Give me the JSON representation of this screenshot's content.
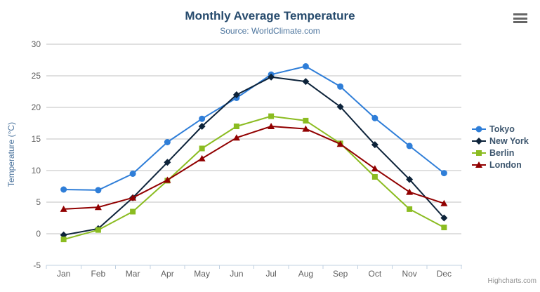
{
  "chart_data": {
    "type": "line",
    "title": "Monthly Average Temperature",
    "subtitle": "Source: WorldClimate.com",
    "categories": [
      "Jan",
      "Feb",
      "Mar",
      "Apr",
      "May",
      "Jun",
      "Jul",
      "Aug",
      "Sep",
      "Oct",
      "Nov",
      "Dec"
    ],
    "series": [
      {
        "name": "Tokyo",
        "color": "#2f7ed8",
        "marker": "circle",
        "values": [
          7.0,
          6.9,
          9.5,
          14.5,
          18.2,
          21.5,
          25.2,
          26.5,
          23.3,
          18.3,
          13.9,
          9.6
        ]
      },
      {
        "name": "New York",
        "color": "#0d233a",
        "marker": "diamond",
        "values": [
          -0.2,
          0.8,
          5.7,
          11.3,
          17.0,
          22.0,
          24.8,
          24.1,
          20.1,
          14.1,
          8.6,
          2.5
        ]
      },
      {
        "name": "Berlin",
        "color": "#8bbc21",
        "marker": "square",
        "values": [
          -0.9,
          0.6,
          3.5,
          8.4,
          13.5,
          17.0,
          18.6,
          17.9,
          14.3,
          9.0,
          3.9,
          1.0
        ]
      },
      {
        "name": "London",
        "color": "#910000",
        "marker": "triangle",
        "values": [
          3.9,
          4.2,
          5.7,
          8.5,
          11.9,
          15.2,
          17.0,
          16.6,
          14.2,
          10.3,
          6.6,
          4.8
        ]
      }
    ],
    "xlabel": "",
    "ylabel": "Temperature (°C)",
    "ylim": [
      -5,
      30
    ],
    "ytick_step": 5,
    "grid": true,
    "legend_position": "right"
  },
  "colors": {
    "title": "#274b6d",
    "subtitle": "#4d759e",
    "axis_label": "#606060",
    "gridline": "#c0c0c0",
    "axis_line": "#c0d0e0",
    "legend_text": "#3e576f",
    "credits": "#909090"
  },
  "credits": {
    "label": "Highcharts.com"
  },
  "export_menu": {
    "icon": "hamburger-icon"
  }
}
